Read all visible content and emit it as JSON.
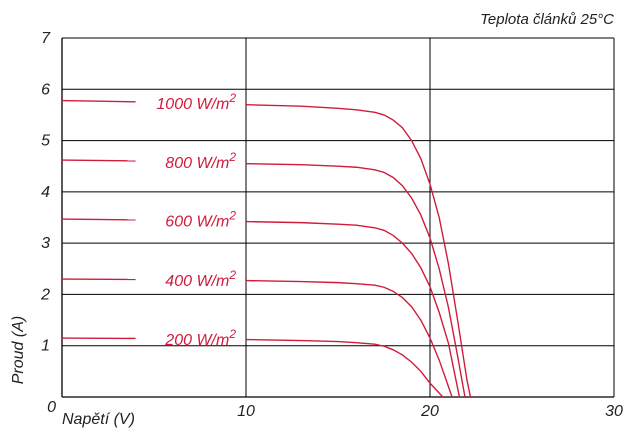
{
  "chart_data": {
    "type": "line",
    "title": "Teplota článků 25°C",
    "xlabel": "Napětí (V)",
    "ylabel": "Proud (A)",
    "xlim": [
      0,
      30
    ],
    "ylim": [
      0,
      7
    ],
    "x_ticks": [
      "0",
      "10",
      "20",
      "30"
    ],
    "y_ticks": [
      "1",
      "2",
      "3",
      "4",
      "5",
      "6",
      "7"
    ],
    "grid": true,
    "line_color": "#d01c3c",
    "series": [
      {
        "name": "1000 W/m²",
        "label_base": "1000 W/m",
        "label_exp": "2",
        "x": [
          0,
          5,
          10,
          13,
          15,
          16,
          17,
          17.5,
          18,
          18.5,
          19,
          19.5,
          20,
          20.5,
          21,
          21.5,
          22,
          22.2
        ],
        "y": [
          5.78,
          5.75,
          5.7,
          5.67,
          5.63,
          5.6,
          5.55,
          5.5,
          5.4,
          5.25,
          5.0,
          4.65,
          4.15,
          3.5,
          2.6,
          1.5,
          0.35,
          0
        ]
      },
      {
        "name": "800 W/m²",
        "label_base": "800 W/m",
        "label_exp": "2",
        "x": [
          0,
          5,
          10,
          13,
          15,
          16,
          17,
          17.5,
          18,
          18.5,
          19,
          19.5,
          20,
          20.5,
          21,
          21.5,
          21.9
        ],
        "y": [
          4.62,
          4.6,
          4.55,
          4.53,
          4.5,
          4.48,
          4.43,
          4.38,
          4.28,
          4.12,
          3.88,
          3.55,
          3.1,
          2.5,
          1.75,
          0.8,
          0
        ]
      },
      {
        "name": "600 W/m²",
        "label_base": "600 W/m",
        "label_exp": "2",
        "x": [
          0,
          5,
          10,
          13,
          15,
          16,
          17,
          17.5,
          18,
          18.5,
          19,
          19.5,
          20,
          20.5,
          21,
          21.6
        ],
        "y": [
          3.47,
          3.45,
          3.42,
          3.4,
          3.37,
          3.35,
          3.3,
          3.25,
          3.15,
          3.0,
          2.8,
          2.52,
          2.15,
          1.65,
          1.05,
          0
        ]
      },
      {
        "name": "400 W/m²",
        "label_base": "400 W/m",
        "label_exp": "2",
        "x": [
          0,
          5,
          10,
          13,
          15,
          16,
          17,
          17.5,
          18,
          18.5,
          19,
          19.5,
          20,
          20.5,
          21.2
        ],
        "y": [
          2.3,
          2.29,
          2.27,
          2.25,
          2.23,
          2.21,
          2.18,
          2.14,
          2.06,
          1.94,
          1.76,
          1.5,
          1.15,
          0.72,
          0
        ]
      },
      {
        "name": "200 W/m²",
        "label_base": "200 W/m",
        "label_exp": "2",
        "x": [
          0,
          5,
          10,
          13,
          15,
          16,
          17,
          17.5,
          18,
          18.5,
          19,
          19.5,
          20,
          20.7
        ],
        "y": [
          1.15,
          1.14,
          1.12,
          1.1,
          1.08,
          1.06,
          1.03,
          0.99,
          0.92,
          0.82,
          0.68,
          0.5,
          0.27,
          0
        ]
      }
    ]
  }
}
